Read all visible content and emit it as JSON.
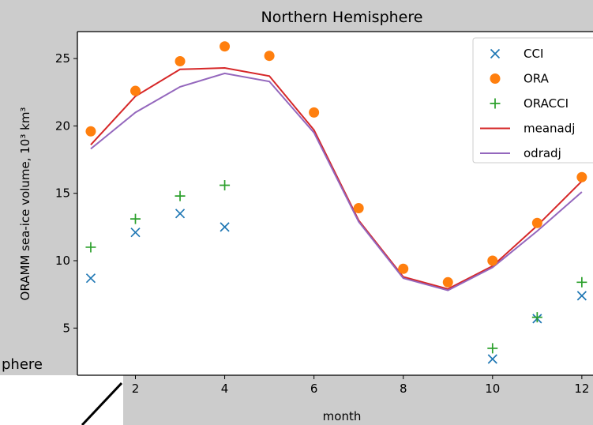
{
  "background_fragment": {
    "text": "phere"
  },
  "chart_data": {
    "type": "scatter",
    "title": "Northern Hemisphere",
    "xlabel": "month",
    "ylabel": "ORAMM sea-ice volume, 10³ km³",
    "xlim": [
      0.7,
      12.25
    ],
    "ylim": [
      1.5,
      27
    ],
    "xticks": [
      2,
      4,
      6,
      8,
      10,
      12
    ],
    "yticks": [
      5,
      10,
      15,
      20,
      25
    ],
    "grid": false,
    "legend_position": "top-right",
    "series": [
      {
        "name": "CCI",
        "kind": "marker",
        "marker": "x",
        "color": "#1f77b4",
        "x": [
          1,
          2,
          3,
          4,
          10,
          11,
          12
        ],
        "y": [
          8.7,
          12.1,
          13.5,
          12.5,
          2.7,
          5.7,
          7.4
        ]
      },
      {
        "name": "ORA",
        "kind": "marker",
        "marker": "o",
        "color": "#ff7f0e",
        "x": [
          1,
          2,
          3,
          4,
          5,
          6,
          7,
          8,
          9,
          10,
          11,
          12
        ],
        "y": [
          19.6,
          22.6,
          24.8,
          25.9,
          25.2,
          21.0,
          13.9,
          9.4,
          8.4,
          10.0,
          12.8,
          16.2
        ]
      },
      {
        "name": "ORACCI",
        "kind": "marker",
        "marker": "+",
        "color": "#2ca02c",
        "x": [
          1,
          2,
          3,
          4,
          10,
          11,
          12
        ],
        "y": [
          11.0,
          13.1,
          14.8,
          15.6,
          3.5,
          5.8,
          8.4
        ]
      },
      {
        "name": "meanadj",
        "kind": "line",
        "color": "#d62728",
        "x": [
          1,
          2,
          3,
          4,
          5,
          6,
          7,
          8,
          9,
          10,
          11,
          12
        ],
        "y": [
          18.6,
          22.2,
          24.2,
          24.3,
          23.7,
          19.7,
          13.0,
          8.8,
          7.9,
          9.6,
          12.6,
          15.9
        ]
      },
      {
        "name": "odradj",
        "kind": "line",
        "color": "#9467bd",
        "x": [
          1,
          2,
          3,
          4,
          5,
          6,
          7,
          8,
          9,
          10,
          11,
          12
        ],
        "y": [
          18.3,
          21.0,
          22.9,
          23.9,
          23.3,
          19.5,
          12.9,
          8.7,
          7.8,
          9.5,
          12.2,
          15.1
        ]
      }
    ]
  }
}
